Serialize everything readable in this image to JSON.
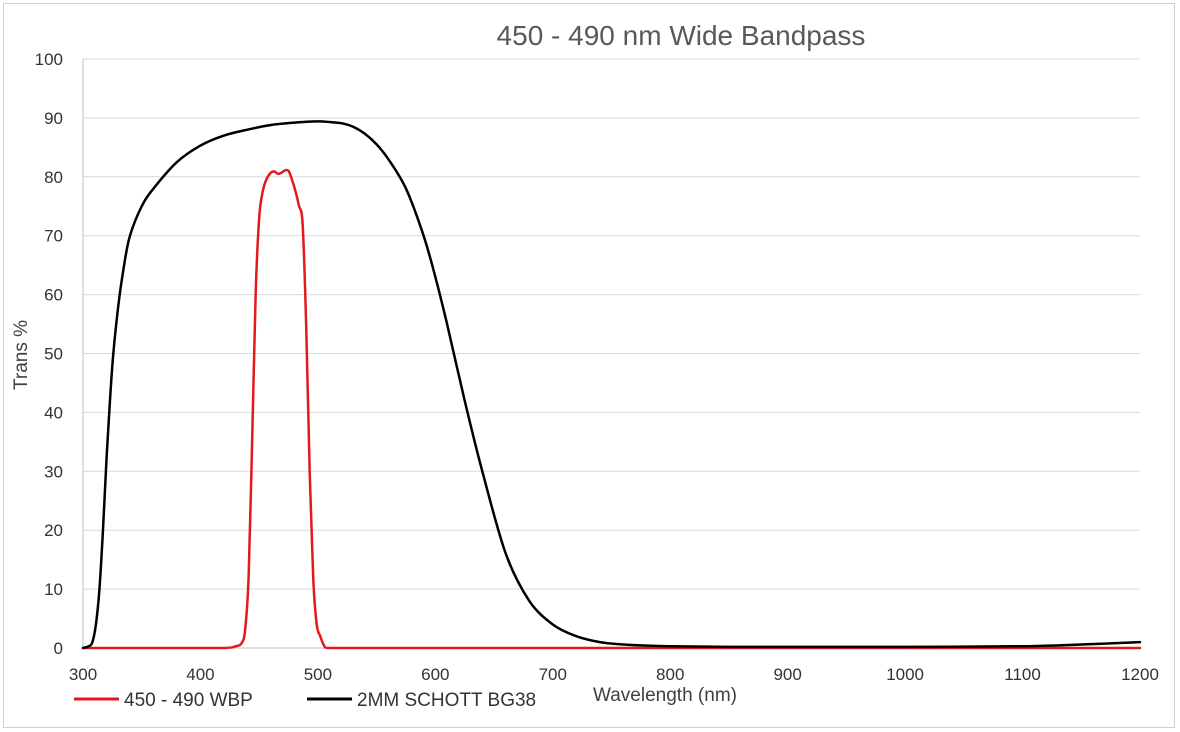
{
  "chart_data": {
    "type": "line",
    "title": "450 - 490 nm Wide Bandpass",
    "xlabel": "Wavelength (nm)",
    "ylabel": "Trans %",
    "xlim": [
      300,
      1200
    ],
    "ylim": [
      0,
      100
    ],
    "xticks": [
      300,
      400,
      500,
      600,
      700,
      800,
      900,
      1000,
      1100,
      1200
    ],
    "yticks": [
      0,
      10,
      20,
      30,
      40,
      50,
      60,
      70,
      80,
      90,
      100
    ],
    "grid": true,
    "legend_position": "bottom-left",
    "series": [
      {
        "name": "450 - 490 WBP",
        "color": "#e31a1c",
        "x": [
          300,
          420,
          430,
          435,
          438,
          441,
          444,
          447,
          450,
          453,
          456,
          460,
          463,
          466,
          469,
          472,
          475,
          478,
          481,
          484,
          487,
          490,
          493,
          496,
          499,
          502,
          505,
          508,
          520,
          600,
          1200
        ],
        "y": [
          0,
          0,
          0.3,
          0.8,
          3,
          12,
          35,
          60,
          73,
          77.5,
          79.5,
          80.7,
          80.9,
          80.5,
          80.7,
          81.1,
          81,
          79.5,
          77.5,
          75,
          72,
          55,
          30,
          12,
          4,
          2,
          0.5,
          0,
          0,
          0,
          0
        ]
      },
      {
        "name": "2MM SCHOTT BG38",
        "color": "#000000",
        "x": [
          300,
          305,
          308,
          311,
          314,
          317,
          320,
          325,
          330,
          335,
          340,
          350,
          360,
          380,
          400,
          420,
          440,
          460,
          480,
          500,
          510,
          520,
          530,
          540,
          550,
          560,
          575,
          590,
          600,
          610,
          625,
          640,
          660,
          680,
          700,
          720,
          740,
          760,
          780,
          800,
          850,
          900,
          1000,
          1100,
          1150,
          1200
        ],
        "y": [
          0,
          0.3,
          1,
          4,
          10,
          20,
          32,
          48,
          58,
          65,
          70,
          75,
          78,
          82.5,
          85.3,
          87,
          88,
          88.8,
          89.2,
          89.4,
          89.3,
          89.1,
          88.5,
          87.3,
          85.5,
          83,
          78,
          70,
          63,
          55,
          42,
          30,
          16,
          8,
          4,
          2,
          1,
          0.6,
          0.4,
          0.3,
          0.2,
          0.2,
          0.2,
          0.3,
          0.6,
          1
        ]
      }
    ]
  }
}
